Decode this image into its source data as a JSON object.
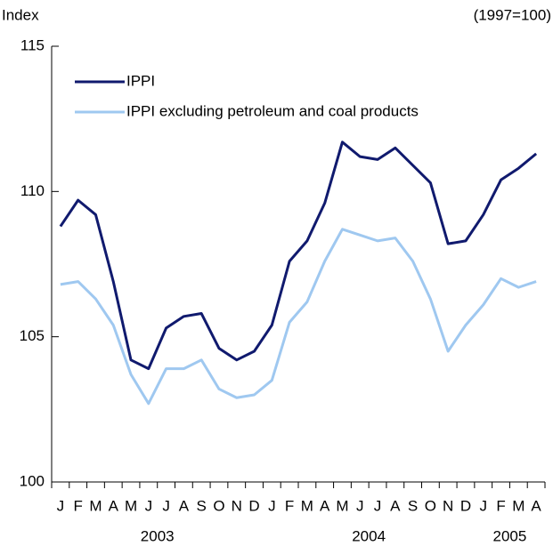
{
  "chart_data": {
    "type": "line",
    "y_axis_label": "Index",
    "note": "(1997=100)",
    "categories": [
      "J",
      "F",
      "M",
      "A",
      "M",
      "J",
      "J",
      "A",
      "S",
      "O",
      "N",
      "D",
      "J",
      "F",
      "M",
      "A",
      "M",
      "J",
      "J",
      "A",
      "S",
      "O",
      "N",
      "D",
      "J",
      "F",
      "M",
      "A"
    ],
    "x_groups": [
      "2003",
      "2004",
      "2005"
    ],
    "series": [
      {
        "name": "IPPI",
        "color": "#101a6e",
        "values": [
          108.8,
          109.7,
          109.2,
          106.9,
          104.2,
          103.9,
          105.3,
          105.7,
          105.8,
          104.6,
          104.2,
          104.5,
          105.4,
          107.6,
          108.3,
          109.6,
          111.7,
          111.2,
          111.1,
          111.5,
          110.9,
          110.3,
          108.2,
          108.3,
          109.2,
          110.4,
          110.8,
          111.3
        ]
      },
      {
        "name": "IPPI excluding petroleum and coal products",
        "color": "#9fc8f0",
        "values": [
          106.8,
          106.9,
          106.3,
          105.4,
          103.7,
          102.7,
          103.9,
          103.9,
          104.2,
          103.2,
          102.9,
          103.0,
          103.5,
          105.5,
          106.2,
          107.6,
          108.7,
          108.5,
          108.3,
          108.4,
          107.6,
          106.3,
          104.5,
          105.4,
          106.1,
          107.0,
          106.7,
          106.9
        ]
      }
    ],
    "ylim": [
      100,
      115
    ],
    "yticks": [
      100,
      105,
      110,
      115
    ],
    "legend": "upper left"
  }
}
